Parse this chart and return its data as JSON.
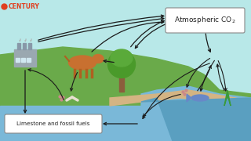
{
  "bg_sky": "#b8e8e8",
  "bg_ground": "#6aaa4a",
  "bg_water": "#7ab8d8",
  "bg_sand": "#d4b483",
  "title_text": "CENTURY",
  "atm_co2_label": "Atmospheric CO₂",
  "limestone_label": "Limestone and fossil fuels",
  "arrow_color": "#1a1a1a",
  "box_color": "#ffffff",
  "box_edge": "#888888"
}
